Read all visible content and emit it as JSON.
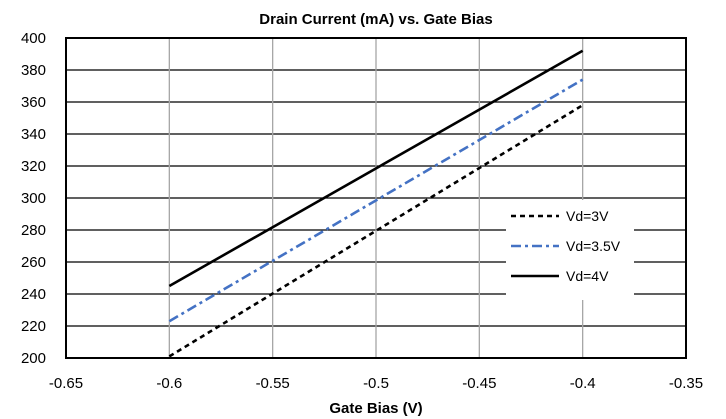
{
  "chart_data": {
    "type": "line",
    "title": "Drain Current (mA) vs. Gate Bias",
    "xlabel": "Gate Bias (V)",
    "ylabel": "",
    "xlim": [
      -0.65,
      -0.35
    ],
    "ylim": [
      200,
      400
    ],
    "x_ticks": [
      -0.65,
      -0.6,
      -0.55,
      -0.5,
      -0.45,
      -0.4,
      -0.35
    ],
    "x_tick_labels": [
      "-0.65",
      "-0.6",
      "-0.55",
      "-0.5",
      "-0.45",
      "-0.4",
      "-0.35"
    ],
    "y_ticks": [
      200,
      220,
      240,
      260,
      280,
      300,
      320,
      340,
      360,
      380,
      400
    ],
    "y_tick_labels": [
      "200",
      "220",
      "240",
      "260",
      "280",
      "300",
      "320",
      "340",
      "360",
      "380",
      "400"
    ],
    "grid": "on",
    "legend_position": "right",
    "series": [
      {
        "name": "Vd=3V",
        "style": "dashed",
        "color": "#000000",
        "x": [
          -0.6,
          -0.4
        ],
        "y": [
          201,
          358
        ]
      },
      {
        "name": "Vd=3.5V",
        "style": "dash-dot",
        "color": "#4472C4",
        "x": [
          -0.6,
          -0.4
        ],
        "y": [
          223,
          374
        ]
      },
      {
        "name": "Vd=4V",
        "style": "solid",
        "color": "#000000",
        "x": [
          -0.6,
          -0.4
        ],
        "y": [
          245,
          392
        ]
      }
    ]
  }
}
